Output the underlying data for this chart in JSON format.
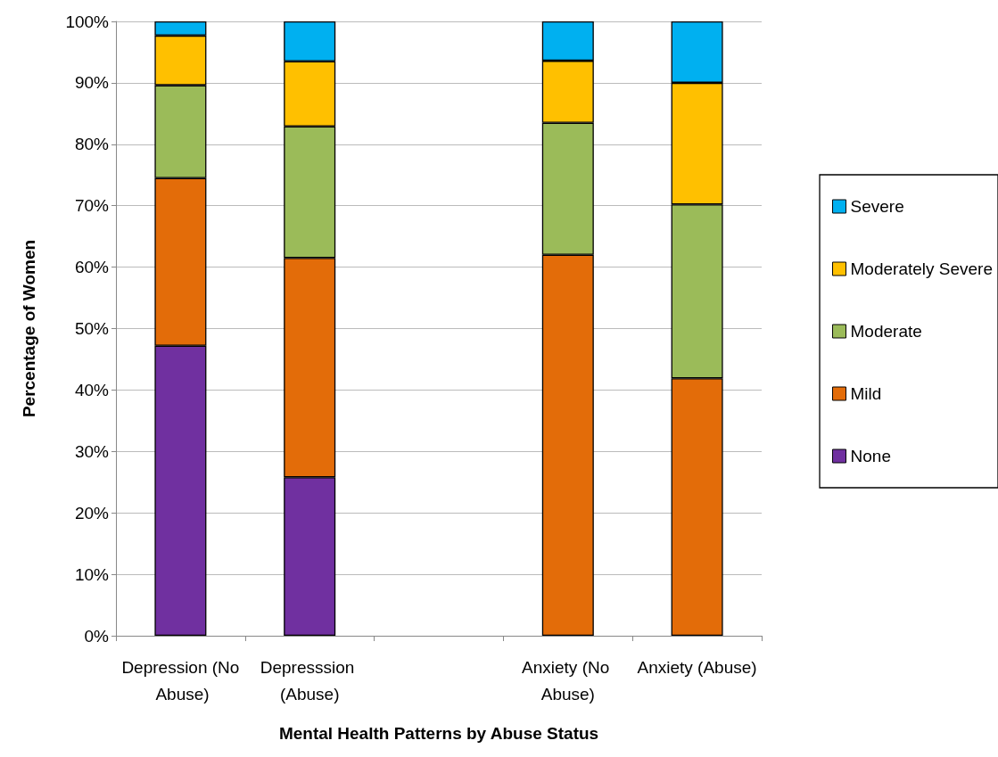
{
  "chart_data": {
    "type": "bar",
    "stacked": true,
    "xlabel": "Mental Health Patterns by Abuse Status",
    "ylabel": "Percentage of Women",
    "categories": [
      "Depression (No Abuse)",
      "Depresssion (Abuse)",
      null,
      "Anxiety (No Abuse)",
      "Anxiety (Abuse)"
    ],
    "series": [
      {
        "name": "None",
        "color": "#7030a0",
        "values": [
          47.2,
          25.8,
          null,
          null,
          null
        ]
      },
      {
        "name": "Mild",
        "color": "#e36c09",
        "values": [
          27.3,
          35.7,
          null,
          62.0,
          41.9
        ]
      },
      {
        "name": "Moderate",
        "color": "#9bbb59",
        "values": [
          15.1,
          21.4,
          null,
          21.5,
          28.3
        ]
      },
      {
        "name": "Moderately Severe",
        "color": "#ffc000",
        "values": [
          8.1,
          10.6,
          null,
          10.1,
          19.8
        ]
      },
      {
        "name": "Severe",
        "color": "#00b0f0",
        "values": [
          2.3,
          6.5,
          null,
          6.4,
          10.0
        ]
      }
    ],
    "ylim": [
      0,
      100
    ],
    "yticks": [
      {
        "value": 0,
        "label": "0%"
      },
      {
        "value": 10,
        "label": "10%"
      },
      {
        "value": 20,
        "label": "20%"
      },
      {
        "value": 30,
        "label": "30%"
      },
      {
        "value": 40,
        "label": "40%"
      },
      {
        "value": 50,
        "label": "50%"
      },
      {
        "value": 60,
        "label": "60%"
      },
      {
        "value": 70,
        "label": "70%"
      },
      {
        "value": 80,
        "label": "80%"
      },
      {
        "value": 90,
        "label": "90%"
      },
      {
        "value": 100,
        "label": "100%"
      }
    ],
    "grid": "y",
    "legend": "right"
  }
}
